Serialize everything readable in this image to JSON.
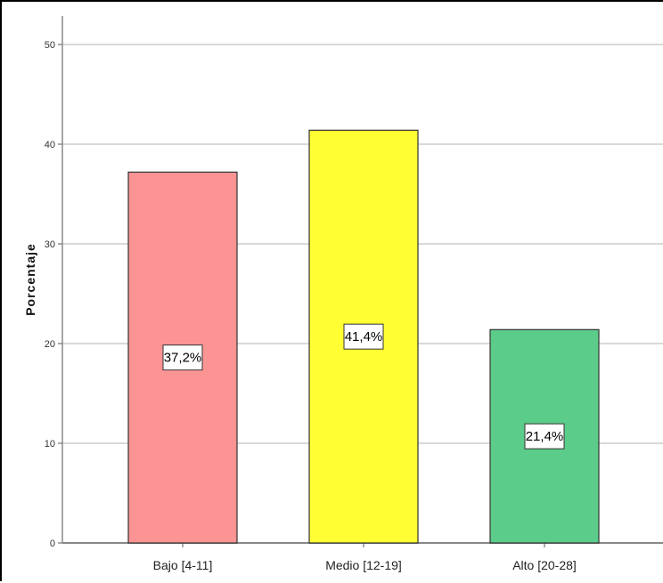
{
  "chart_data": {
    "type": "bar",
    "title": "",
    "xlabel": "",
    "ylabel": "Porcentaje",
    "ylim": [
      0,
      50
    ],
    "yticks": [
      0,
      10,
      20,
      30,
      40,
      50
    ],
    "grid": true,
    "categories": [
      "Bajo [4-11]",
      "Medio [12-19]",
      "Alto [20-28]"
    ],
    "values": [
      37.2,
      41.4,
      21.4
    ],
    "data_labels": [
      "37,2%",
      "41,4%",
      "21,4%"
    ],
    "colors": [
      "#fc9494",
      "#ffff33",
      "#5ccc8a"
    ]
  }
}
